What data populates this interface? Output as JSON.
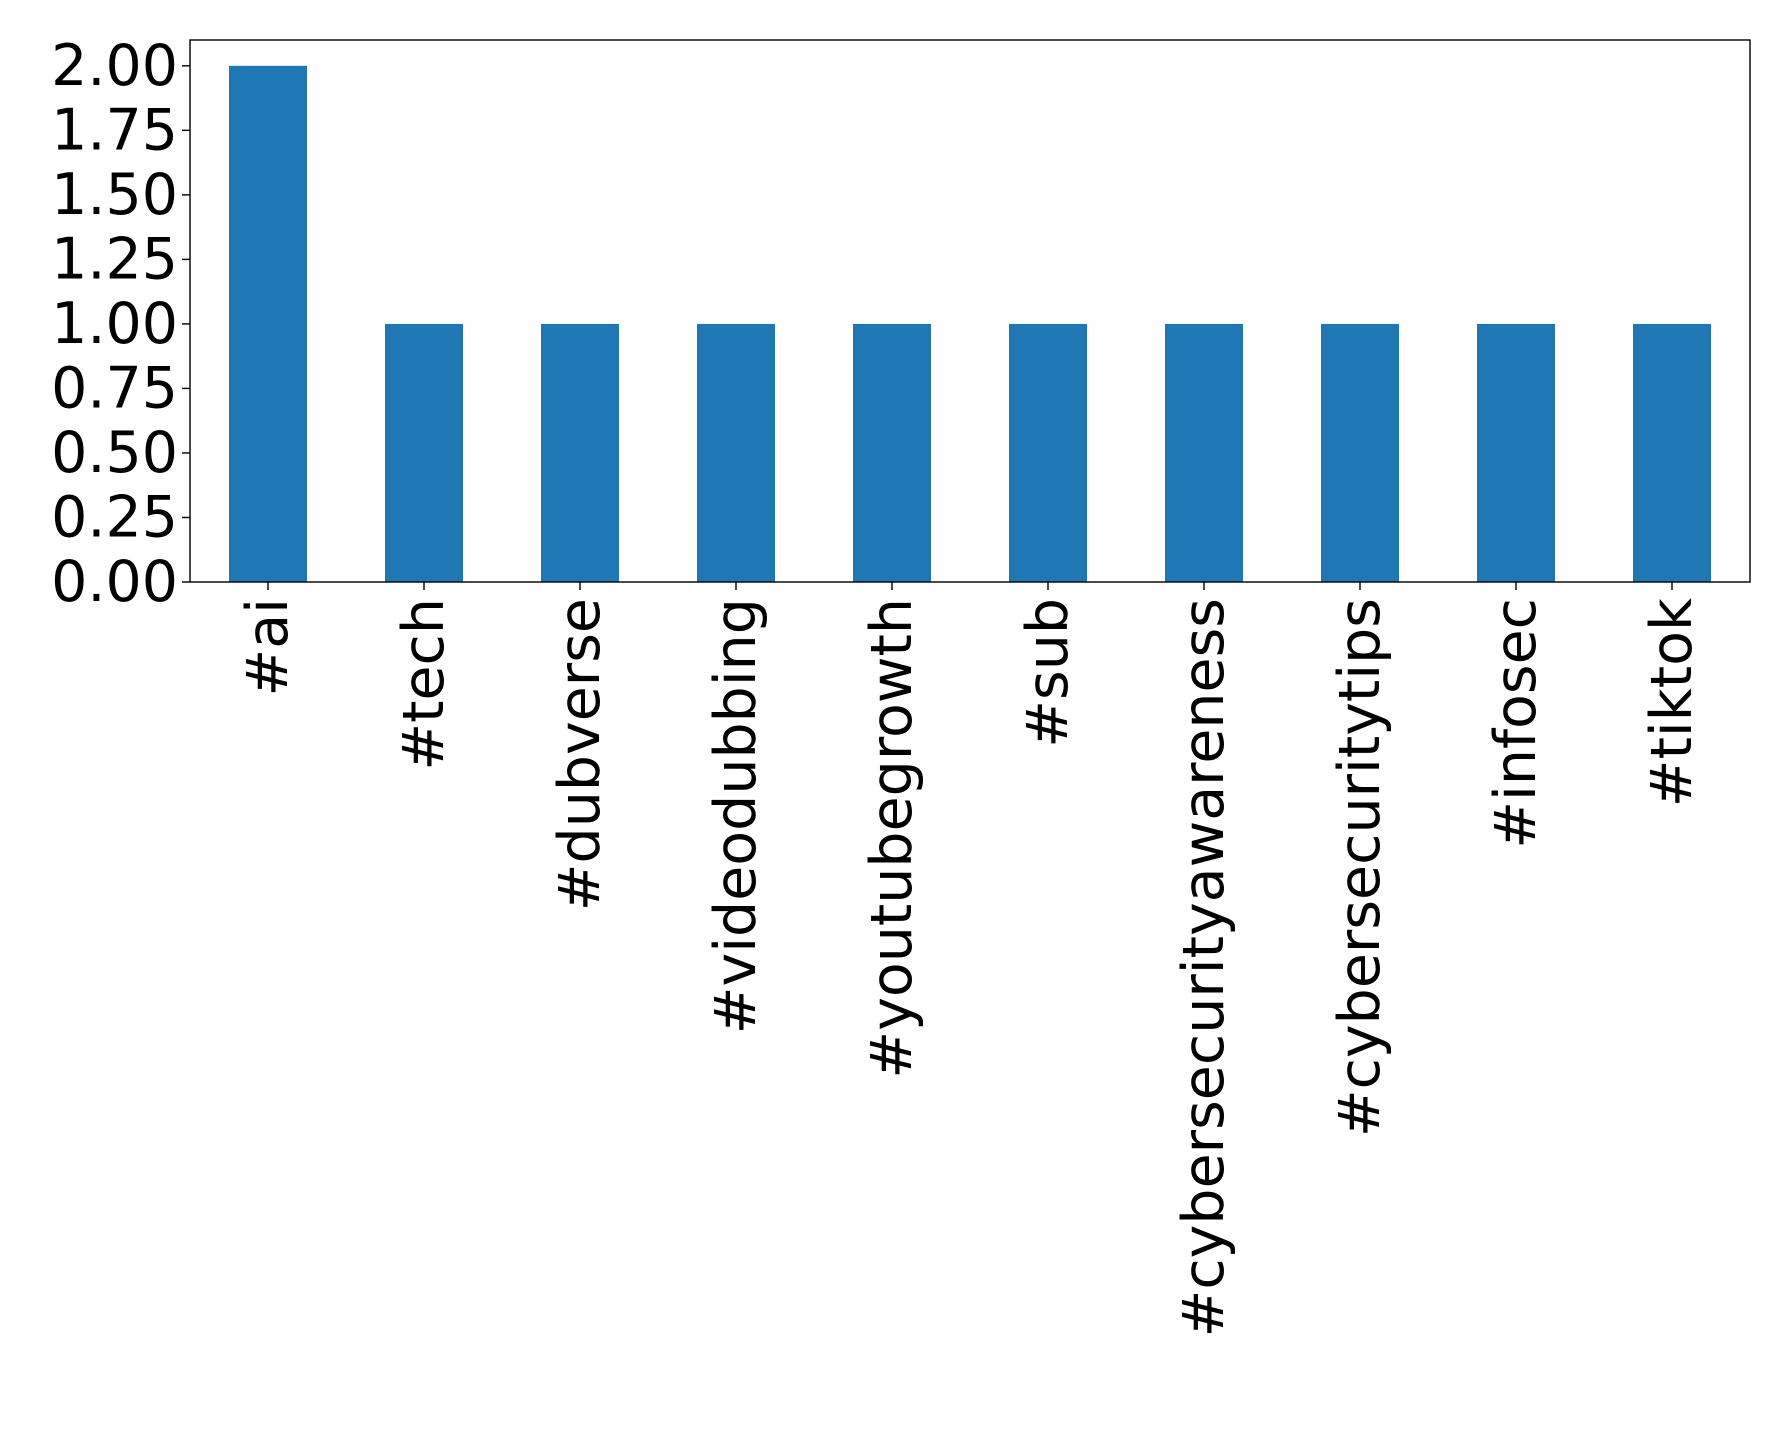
{
  "chart_data": {
    "type": "bar",
    "title": "",
    "xlabel": "",
    "ylabel": "",
    "categories": [
      "#ai",
      "#tech",
      "#dubverse",
      "#videodubbing",
      "#youtubegrowth",
      "#sub",
      "#cybersecurityawareness",
      "#cybersecuritytips",
      "#infosec",
      "#tiktok"
    ],
    "values": [
      2,
      1,
      1,
      1,
      1,
      1,
      1,
      1,
      1,
      1
    ],
    "ylim": [
      0,
      2.1
    ],
    "yticks": [
      "0.00",
      "0.25",
      "0.50",
      "0.75",
      "1.00",
      "1.25",
      "1.50",
      "1.75",
      "2.00"
    ],
    "grid": false,
    "legend": "none",
    "bar_color": "#1f77b4",
    "axis_color": "#000000"
  }
}
